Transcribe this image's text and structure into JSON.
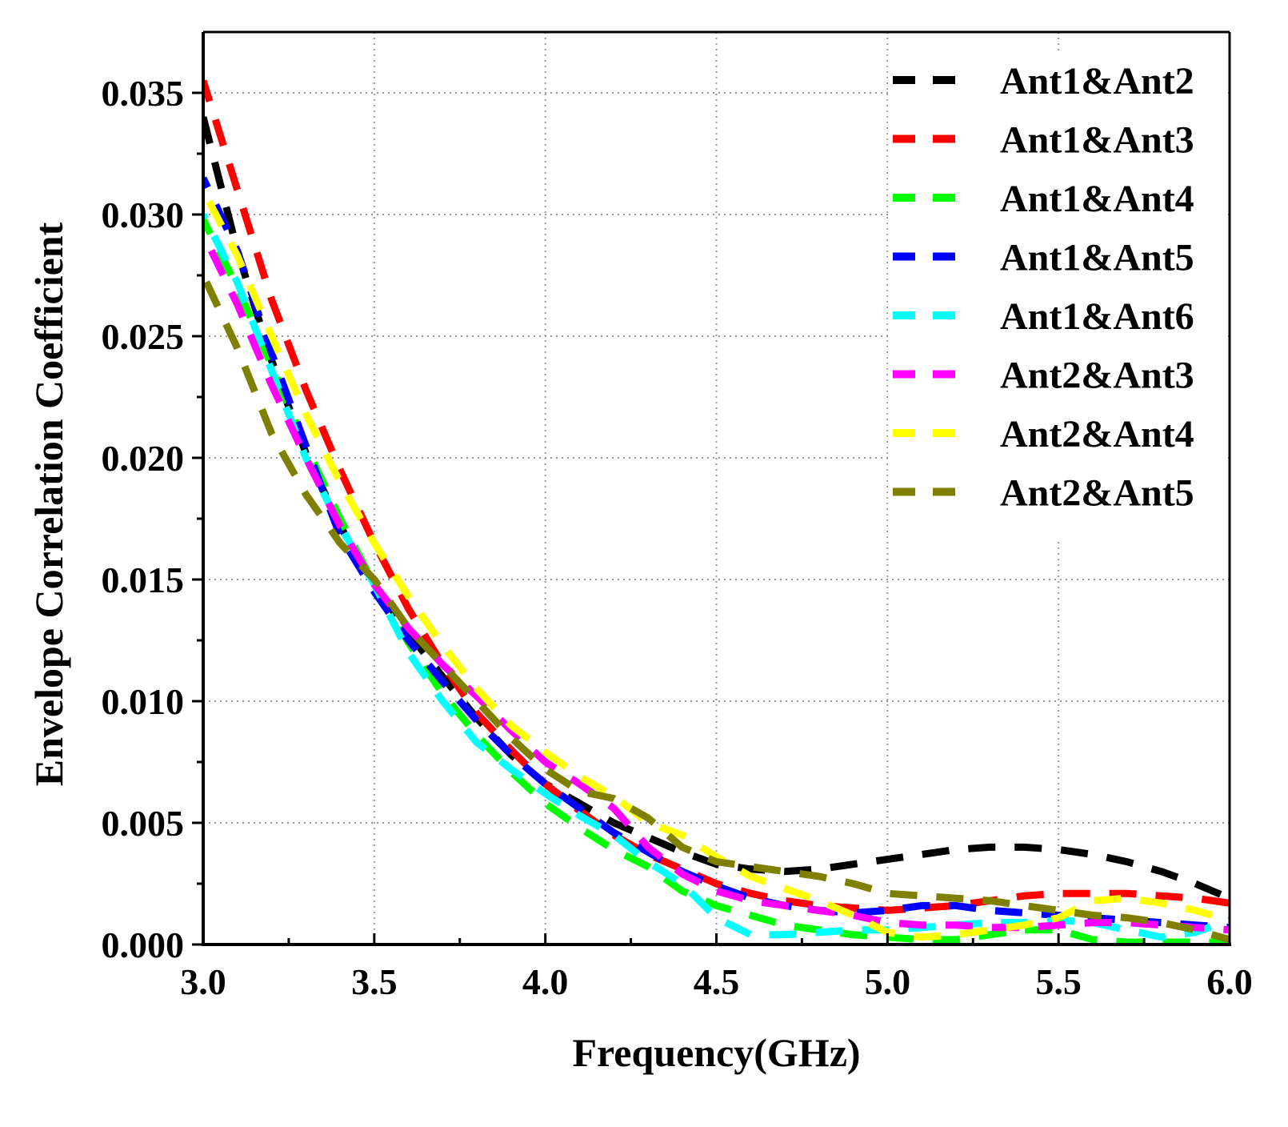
{
  "chart_data": {
    "type": "line",
    "title": "",
    "xlabel": "Frequency(GHz)",
    "ylabel": "Envelope Correlation Coefficient",
    "xlim": [
      3.0,
      6.0
    ],
    "ylim": [
      0.0,
      0.0375
    ],
    "xticks": [
      "3.0",
      "3.5",
      "4.0",
      "4.5",
      "5.0",
      "5.5",
      "6.0"
    ],
    "yticks": [
      "0.000",
      "0.005",
      "0.010",
      "0.015",
      "0.020",
      "0.025",
      "0.030",
      "0.035"
    ],
    "grid": true,
    "legend_position": "top-right",
    "x": [
      3.0,
      3.1,
      3.2,
      3.3,
      3.4,
      3.5,
      3.6,
      3.7,
      3.8,
      3.9,
      4.0,
      4.1,
      4.2,
      4.3,
      4.4,
      4.5,
      4.6,
      4.7,
      4.8,
      4.9,
      5.0,
      5.1,
      5.2,
      5.3,
      5.4,
      5.5,
      5.6,
      5.7,
      5.8,
      5.9,
      6.0
    ],
    "series": [
      {
        "name": "Ant1&Ant2",
        "color": "#000000",
        "values": [
          0.034,
          0.0285,
          0.024,
          0.0202,
          0.0172,
          0.0148,
          0.0128,
          0.011,
          0.0093,
          0.0078,
          0.0066,
          0.0058,
          0.005,
          0.0044,
          0.0038,
          0.0033,
          0.0031,
          0.003,
          0.0031,
          0.0033,
          0.0035,
          0.0037,
          0.0039,
          0.004,
          0.004,
          0.0039,
          0.0037,
          0.0034,
          0.003,
          0.0025,
          0.0019
        ]
      },
      {
        "name": "Ant1&Ant3",
        "color": "#ff0000",
        "values": [
          0.0355,
          0.031,
          0.0265,
          0.0228,
          0.0195,
          0.0165,
          0.0138,
          0.0115,
          0.0095,
          0.008,
          0.0066,
          0.0055,
          0.0045,
          0.0037,
          0.0031,
          0.0025,
          0.0021,
          0.0018,
          0.0016,
          0.0015,
          0.0014,
          0.0015,
          0.0016,
          0.0018,
          0.002,
          0.0021,
          0.0021,
          0.0021,
          0.002,
          0.0019,
          0.0017
        ]
      },
      {
        "name": "Ant1&Ant4",
        "color": "#00ff00",
        "values": [
          0.0298,
          0.027,
          0.0238,
          0.0205,
          0.0175,
          0.0148,
          0.0124,
          0.0103,
          0.0086,
          0.0071,
          0.0058,
          0.0048,
          0.0039,
          0.0032,
          0.0022,
          0.0016,
          0.0012,
          0.0008,
          0.0006,
          0.0004,
          0.0003,
          0.0002,
          0.0002,
          0.0004,
          0.0006,
          0.0006,
          0.0002,
          0.0001,
          0.0001,
          0.0001,
          0.0001
        ]
      },
      {
        "name": "Ant1&Ant5",
        "color": "#0000ff",
        "values": [
          0.0315,
          0.0285,
          0.0243,
          0.0205,
          0.0168,
          0.0145,
          0.0125,
          0.0108,
          0.0092,
          0.0078,
          0.0066,
          0.0056,
          0.0046,
          0.0038,
          0.003,
          0.0024,
          0.0019,
          0.0016,
          0.0014,
          0.0013,
          0.0014,
          0.0016,
          0.0016,
          0.0014,
          0.0013,
          0.0012,
          0.0011,
          0.001,
          0.0009,
          0.0008,
          0.0007
        ]
      },
      {
        "name": "Ant1&Ant6",
        "color": "#00ffff",
        "values": [
          0.03,
          0.0272,
          0.0236,
          0.02,
          0.0172,
          0.0148,
          0.012,
          0.01,
          0.0083,
          0.0072,
          0.0062,
          0.0053,
          0.0045,
          0.0034,
          0.0025,
          0.0011,
          0.0004,
          0.0004,
          0.0005,
          0.0006,
          0.0006,
          0.0007,
          0.0008,
          0.0009,
          0.0009,
          0.001,
          0.0009,
          0.0006,
          0.0003,
          0.0005,
          0.001
        ]
      },
      {
        "name": "Ant2&Ant3",
        "color": "#ff00ff",
        "values": [
          0.0292,
          0.0263,
          0.023,
          0.02,
          0.0172,
          0.0148,
          0.013,
          0.0115,
          0.0102,
          0.0088,
          0.0075,
          0.0066,
          0.0056,
          0.004,
          0.0029,
          0.0022,
          0.0018,
          0.0016,
          0.0014,
          0.0012,
          0.0009,
          0.0008,
          0.0008,
          0.0007,
          0.0007,
          0.0008,
          0.0009,
          0.0009,
          0.0008,
          0.0007,
          0.0006
        ]
      },
      {
        "name": "Ant2&Ant4",
        "color": "#ffff00",
        "values": [
          0.031,
          0.0283,
          0.025,
          0.0218,
          0.019,
          0.0165,
          0.0143,
          0.0123,
          0.0105,
          0.009,
          0.0079,
          0.0069,
          0.0061,
          0.005,
          0.0045,
          0.0036,
          0.0028,
          0.0023,
          0.0018,
          0.0012,
          0.0005,
          0.0003,
          0.0004,
          0.0006,
          0.0008,
          0.0011,
          0.0018,
          0.0019,
          0.0017,
          0.0014,
          0.001
        ]
      },
      {
        "name": "Ant2&Ant5",
        "color": "#808000",
        "values": [
          0.0275,
          0.0245,
          0.021,
          0.0185,
          0.0165,
          0.015,
          0.013,
          0.0115,
          0.01,
          0.0085,
          0.0072,
          0.0063,
          0.006,
          0.0052,
          0.004,
          0.0034,
          0.0032,
          0.003,
          0.0028,
          0.0025,
          0.0021,
          0.002,
          0.0019,
          0.0018,
          0.0016,
          0.0014,
          0.0012,
          0.0011,
          0.0009,
          0.0006,
          0.0002
        ]
      }
    ]
  }
}
